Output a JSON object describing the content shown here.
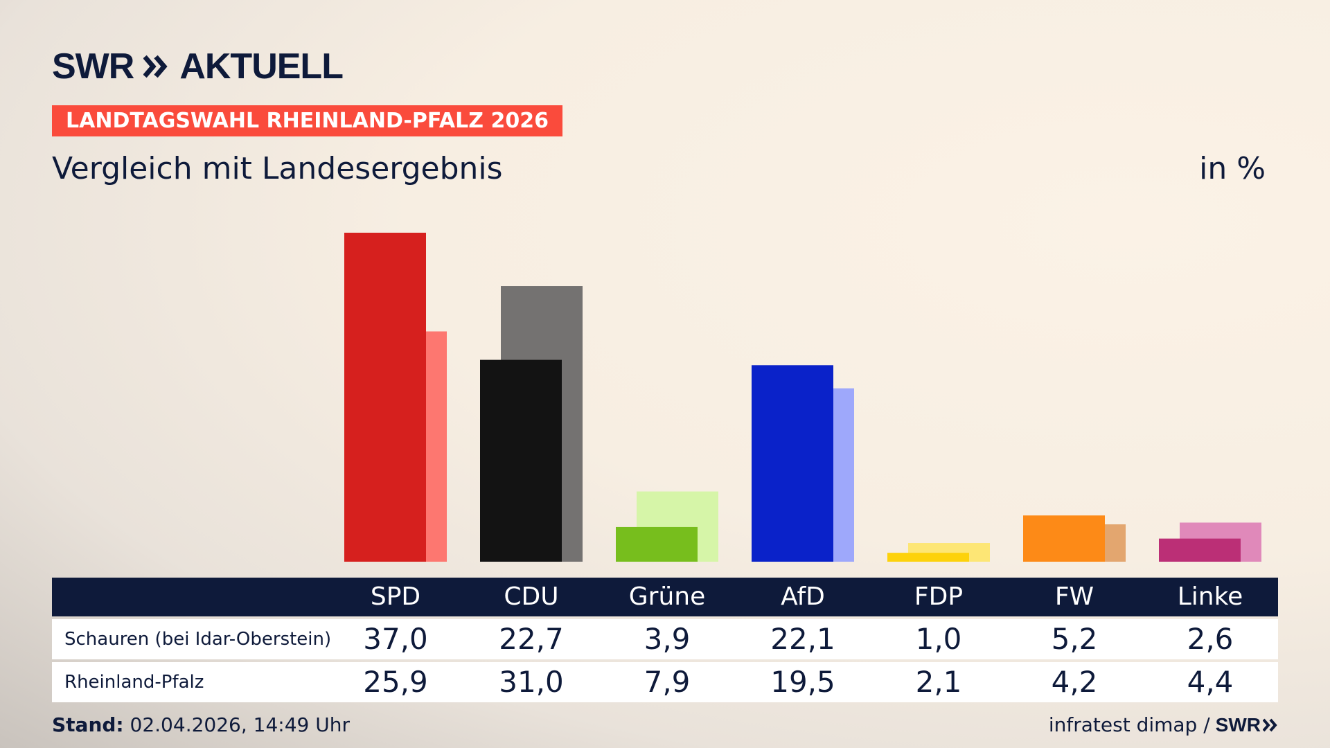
{
  "brand": {
    "logo_left": "SWR",
    "logo_right": "AKTUELL",
    "color": "#0e1a3a"
  },
  "badge": {
    "text": "LANDTAGSWAHL RHEINLAND-PFALZ 2026",
    "color": "#fa4b3c"
  },
  "subtitle": "Vergleich mit Landesergebnis",
  "unit": "in %",
  "chart_data": {
    "type": "bar",
    "categories": [
      "SPD",
      "CDU",
      "Grüne",
      "AfD",
      "FDP",
      "FW",
      "Linke"
    ],
    "series": [
      {
        "name": "Schauren (bei Idar-Oberstein)",
        "values": [
          37.0,
          22.7,
          3.9,
          22.1,
          1.0,
          5.2,
          2.6
        ],
        "colors": [
          "#d6201e",
          "#131313",
          "#77be1d",
          "#0a22c9",
          "#fdd20b",
          "#fd8a17",
          "#bb2f76"
        ]
      },
      {
        "name": "Rheinland-Pfalz",
        "values": [
          25.9,
          31.0,
          7.9,
          19.5,
          2.1,
          4.2,
          4.4
        ],
        "colors": [
          "#fd7770",
          "#747271",
          "#d6f5a8",
          "#9ea8fb",
          "#fde675",
          "#e3a66f",
          "#e089ba"
        ]
      }
    ],
    "ylim": [
      0,
      37.0
    ],
    "grid": false,
    "legend": "table-below"
  },
  "table": {
    "rows": [
      {
        "label": "Schauren (bei Idar-Oberstein)",
        "values": [
          "37,0",
          "22,7",
          "3,9",
          "22,1",
          "1,0",
          "5,2",
          "2,6"
        ]
      },
      {
        "label": "Rheinland-Pfalz",
        "values": [
          "25,9",
          "31,0",
          "7,9",
          "19,5",
          "2,1",
          "4,2",
          "4,4"
        ]
      }
    ]
  },
  "footer": {
    "stand_label": "Stand:",
    "stand_value": "02.04.2026, 14:49 Uhr",
    "source": "infratest dimap /",
    "source_logo": "SWR"
  }
}
